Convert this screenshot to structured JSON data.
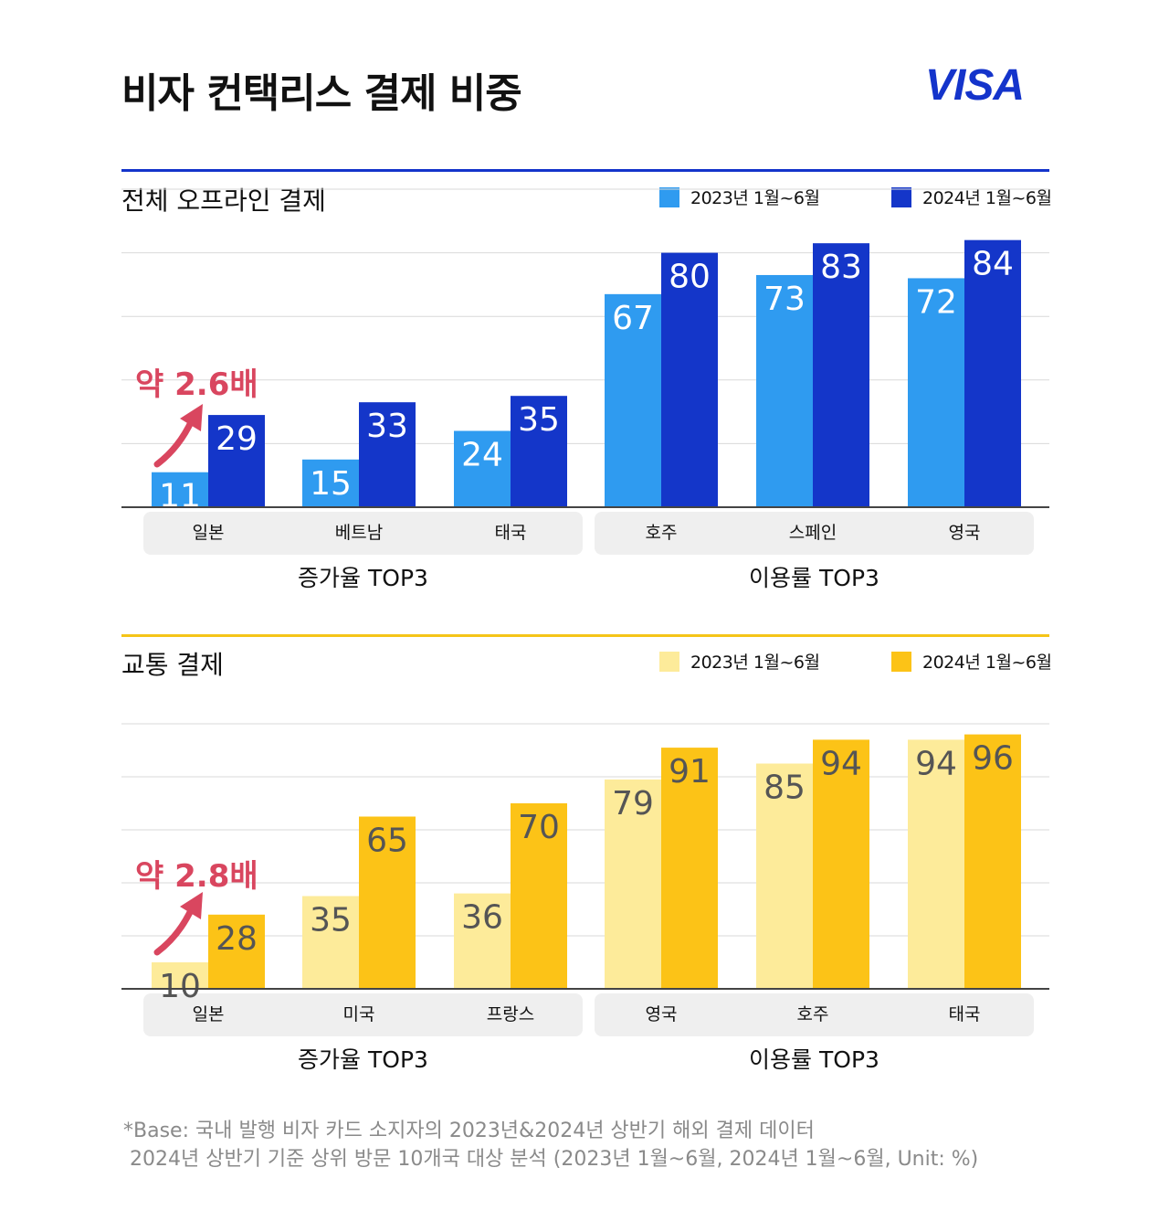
{
  "title": "비자 컨택리스 결제 비중",
  "logo": "VISA",
  "chart_data": [
    {
      "type": "bar",
      "title": "전체 오프라인 결제",
      "categories": [
        "일본",
        "베트남",
        "태국",
        "호주",
        "스페인",
        "영국"
      ],
      "groups": [
        {
          "label": "증가율 TOP3",
          "categories": [
            "일본",
            "베트남",
            "태국"
          ]
        },
        {
          "label": "이용률 TOP3",
          "categories": [
            "호주",
            "스페인",
            "영국"
          ]
        }
      ],
      "series": [
        {
          "name": "2023년 1월~6월",
          "color": "#2f9bf0",
          "values": [
            11,
            15,
            24,
            67,
            73,
            72
          ]
        },
        {
          "name": "2024년 1월~6월",
          "color": "#1436c9",
          "values": [
            29,
            33,
            35,
            80,
            83,
            84
          ]
        }
      ],
      "annotation": "약 2.6배",
      "ylim": [
        0,
        100
      ],
      "grid": true,
      "legend": "top-right"
    },
    {
      "type": "bar",
      "title": "교통 결제",
      "categories": [
        "일본",
        "미국",
        "프랑스",
        "영국",
        "호주",
        "태국"
      ],
      "groups": [
        {
          "label": "증가율 TOP3",
          "categories": [
            "일본",
            "미국",
            "프랑스"
          ]
        },
        {
          "label": "이용률 TOP3",
          "categories": [
            "영국",
            "호주",
            "태국"
          ]
        }
      ],
      "series": [
        {
          "name": "2023년 1월~6월",
          "color": "#fdeb9a",
          "values": [
            10,
            35,
            36,
            79,
            85,
            94
          ]
        },
        {
          "name": "2024년 1월~6월",
          "color": "#fcc317",
          "values": [
            28,
            65,
            70,
            91,
            94,
            96
          ]
        }
      ],
      "annotation": "약 2.8배",
      "ylim": [
        0,
        100
      ],
      "grid": true,
      "legend": "top-right"
    }
  ],
  "colors": {
    "chart1_accent": "#1434cb",
    "chart2_accent": "#f5c518",
    "annotation": "#d9465f",
    "label_light_chart1": "#ffffff",
    "label_dark_chart1": "#ffffff",
    "label_light_chart2": "#555555",
    "label_dark_chart2": "#555555"
  },
  "footnote": {
    "line1": "*Base: 국내 발행 비자 카드 소지자의 2023년&2024년 상반기 해외 결제 데이터",
    "line2": " 2024년 상반기 기준 상위 방문 10개국 대상 분석 (2023년 1월~6월, 2024년 1월~6월, Unit: %)"
  }
}
